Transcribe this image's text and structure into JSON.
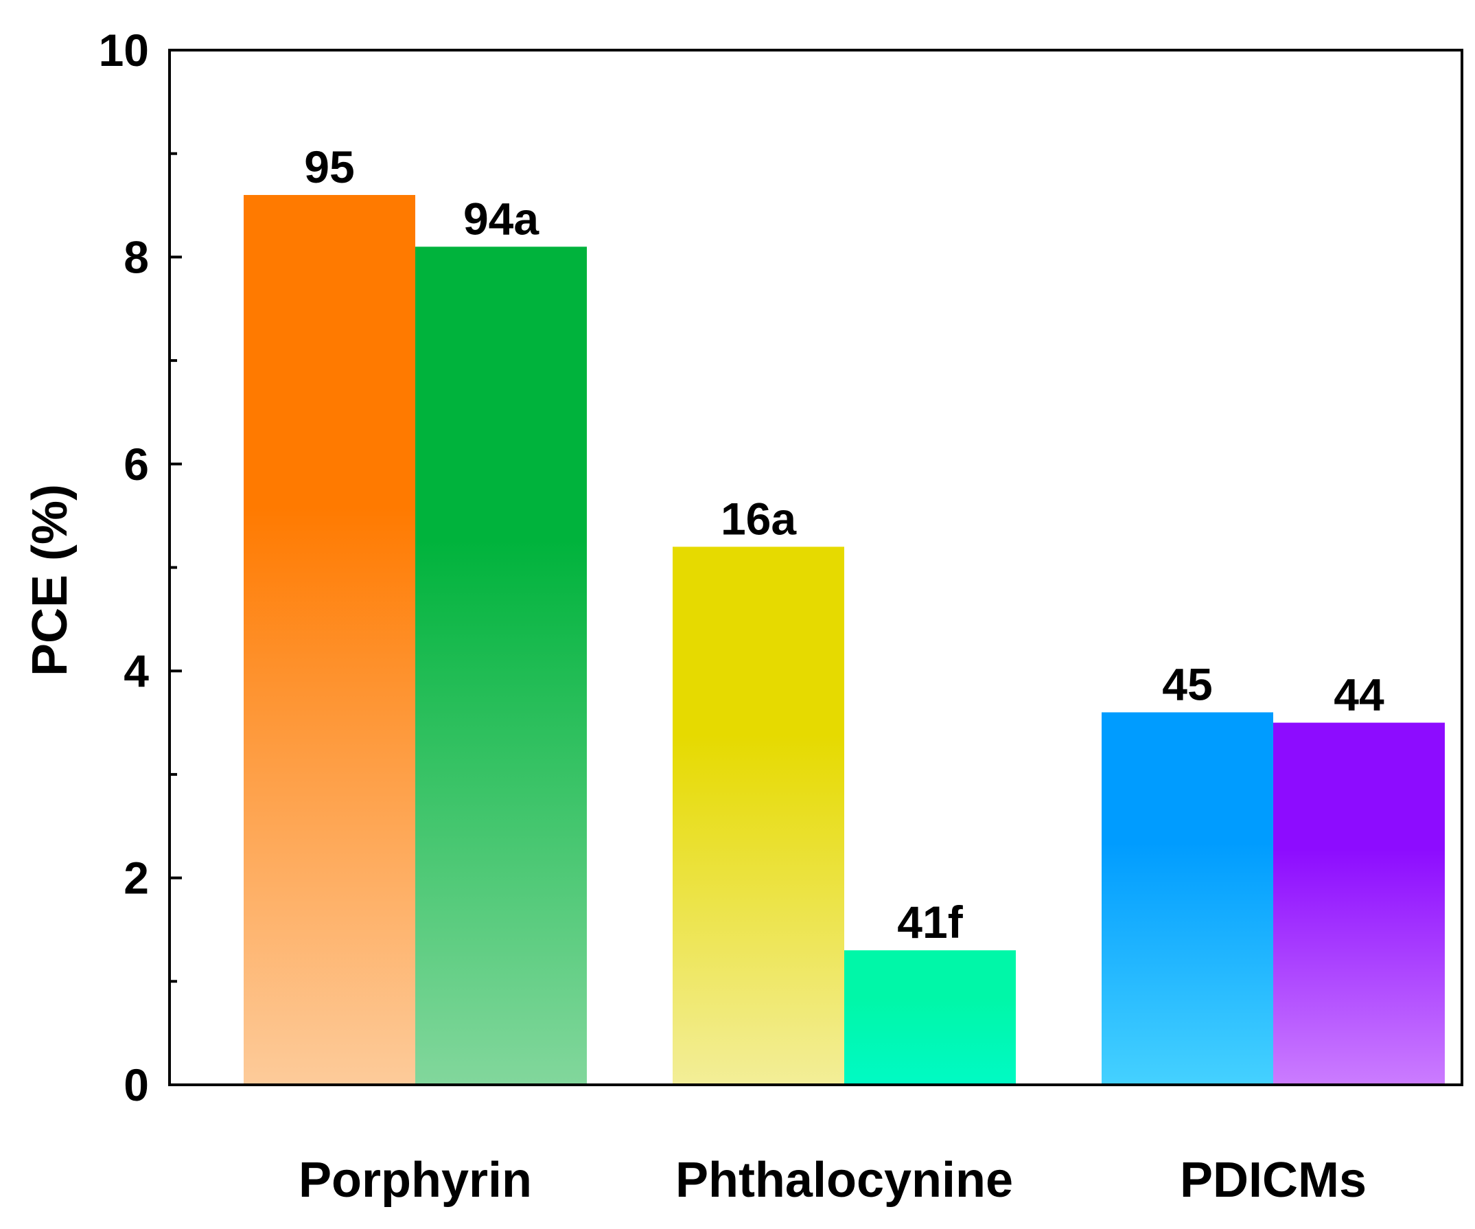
{
  "chart_data": {
    "type": "bar",
    "title": "",
    "xlabel": "",
    "ylabel": "PCE (%)",
    "ylim": [
      0,
      10
    ],
    "yticks": [
      0,
      2,
      4,
      6,
      8,
      10
    ],
    "yticks_minor": [
      1,
      3,
      5,
      7,
      9
    ],
    "grid": false,
    "legend": "none",
    "categories": [
      "Porphyrin",
      "Phthalocynine",
      "PDICMs"
    ],
    "bars": [
      {
        "category": "Porphyrin",
        "label": "95",
        "value": 8.6,
        "color_top": "#FF7A00",
        "color_bottom": "#FDCB9A"
      },
      {
        "category": "Porphyrin",
        "label": "94a",
        "value": 8.1,
        "color_top": "#00B33C",
        "color_bottom": "#82D79C"
      },
      {
        "category": "Phthalocynine",
        "label": "16a",
        "value": 5.2,
        "color_top": "#E6DA00",
        "color_bottom": "#F3EE98"
      },
      {
        "category": "Phthalocynine",
        "label": "41f",
        "value": 1.3,
        "color_top": "#00F7A8",
        "color_bottom": "#00FAC4"
      },
      {
        "category": "PDICMs",
        "label": "45",
        "value": 3.6,
        "color_top": "#009CFF",
        "color_bottom": "#45D1FF"
      },
      {
        "category": "PDICMs",
        "label": "44",
        "value": 3.5,
        "color_top": "#8D0CFF",
        "color_bottom": "#CB7CFF"
      }
    ]
  }
}
